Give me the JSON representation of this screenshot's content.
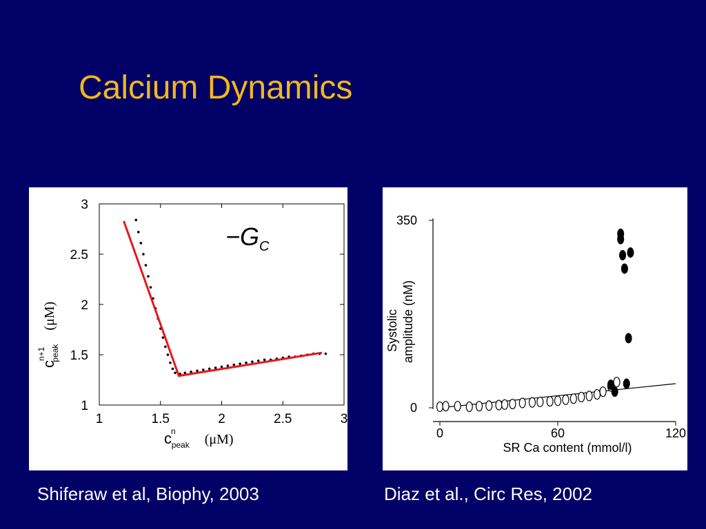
{
  "slide": {
    "title": "Calcium Dynamics",
    "title_color": "#F2B81A",
    "background_color": "#000066",
    "caption_left": "Shiferaw et al, Biophy, 2003",
    "caption_right": "Diaz et al., Circ Res, 2002"
  },
  "chart_data": [
    {
      "type": "scatter",
      "xlabel": "c",
      "xlabel_superscript": "n",
      "xlabel_subscript": "peak",
      "xlabel_unit": "(μM)",
      "ylabel": "c",
      "ylabel_superscript": "n+1",
      "ylabel_subscript": "peak",
      "ylabel_unit": "(μM)",
      "annotation": "−G",
      "annotation_subscript": "C",
      "xlim": [
        1,
        3
      ],
      "ylim": [
        1,
        3
      ],
      "xticks": [
        "1",
        "1.5",
        "2",
        "2.5",
        "3"
      ],
      "yticks": [
        "1",
        "1.5",
        "2",
        "2.5",
        "3"
      ],
      "fit_line_color": "#e8161b",
      "fit_line": {
        "x": [
          1.2,
          1.65,
          2.82
        ],
        "y": [
          2.83,
          1.29,
          1.52
        ]
      },
      "data_points": {
        "x": [
          1.3,
          1.32,
          1.34,
          1.36,
          1.38,
          1.4,
          1.42,
          1.44,
          1.46,
          1.48,
          1.5,
          1.52,
          1.54,
          1.56,
          1.58,
          1.6,
          1.62,
          1.66,
          1.7,
          1.75,
          1.8,
          1.85,
          1.9,
          1.95,
          2.0,
          2.05,
          2.1,
          2.15,
          2.2,
          2.25,
          2.3,
          2.35,
          2.4,
          2.45,
          2.5,
          2.55,
          2.6,
          2.65,
          2.7,
          2.75,
          2.8,
          2.85
        ],
        "y": [
          2.84,
          2.72,
          2.61,
          2.5,
          2.39,
          2.28,
          2.17,
          2.06,
          1.96,
          1.86,
          1.76,
          1.67,
          1.58,
          1.5,
          1.42,
          1.36,
          1.32,
          1.31,
          1.32,
          1.33,
          1.34,
          1.35,
          1.36,
          1.37,
          1.38,
          1.39,
          1.4,
          1.41,
          1.42,
          1.43,
          1.44,
          1.45,
          1.45,
          1.46,
          1.47,
          1.48,
          1.48,
          1.49,
          1.5,
          1.51,
          1.51,
          1.51
        ]
      }
    },
    {
      "type": "scatter",
      "ylabel_line1": "Systolic",
      "ylabel_line2": "amplitude (nM)",
      "xlabel": "SR Ca content (mmol/l)",
      "xlim": [
        0,
        120
      ],
      "ylim": [
        0,
        350
      ],
      "xticks": [
        "0",
        "60",
        "120"
      ],
      "yticks": [
        "0",
        "350"
      ],
      "fit_line": {
        "x": [
          0,
          120
        ],
        "y": [
          0,
          45
        ]
      },
      "open_points": {
        "x": [
          0,
          3,
          9,
          15,
          20,
          25,
          30,
          33,
          37,
          42,
          47,
          51,
          56,
          60,
          64,
          68,
          72,
          76,
          80,
          83,
          87,
          90
        ],
        "y": [
          2,
          3,
          3,
          2,
          3,
          4,
          5,
          6,
          7,
          9,
          10,
          11,
          12,
          13,
          15,
          17,
          20,
          22,
          25,
          30,
          40,
          48
        ]
      },
      "filled_points": {
        "x": [
          87,
          89,
          92,
          92,
          93,
          94,
          95,
          96,
          97
        ],
        "y": [
          43,
          30,
          325,
          315,
          285,
          260,
          45,
          130,
          290
        ]
      }
    }
  ]
}
